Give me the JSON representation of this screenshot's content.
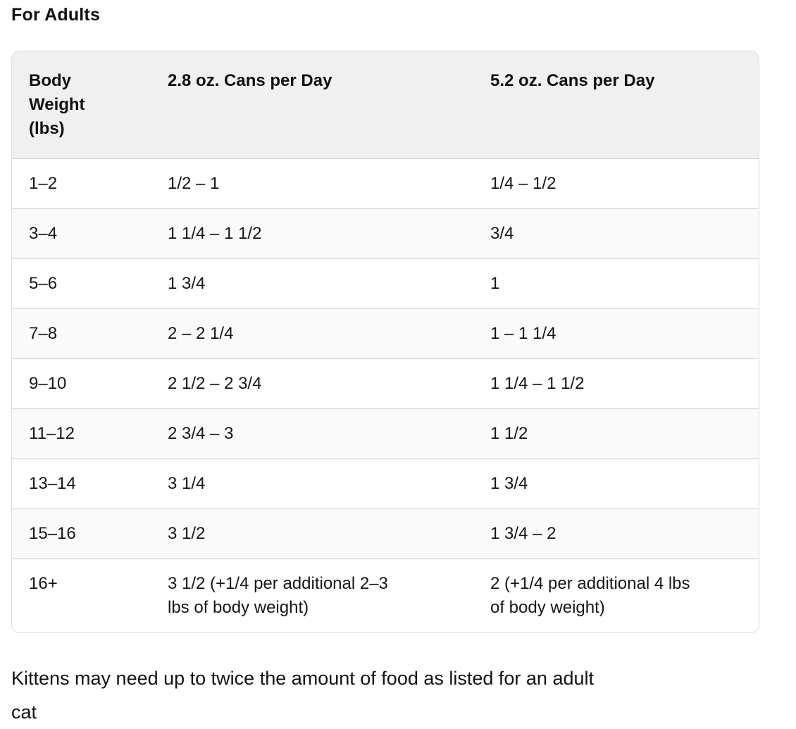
{
  "page": {
    "heading": "For Adults",
    "note": "Kittens may need up to twice the amount of food as listed for an adult\ncat"
  },
  "table": {
    "columns": [
      "Body Weight (lbs)",
      "2.8 oz. Cans per Day",
      "5.2 oz. Cans per Day"
    ],
    "rows": [
      [
        "1–2",
        "1/2 – 1",
        "1/4 – 1/2"
      ],
      [
        "3–4",
        "1 1/4 – 1 1/2",
        "3/4"
      ],
      [
        "5–6",
        "1 3/4",
        "1"
      ],
      [
        "7–8",
        "2 – 2 1/4",
        "1 – 1 1/4"
      ],
      [
        "9–10",
        "2 1/2 – 2 3/4",
        "1 1/4 – 1 1/2"
      ],
      [
        "11–12",
        "2 3/4 – 3",
        "1 1/2"
      ],
      [
        "13–14",
        "3 1/4",
        "1 3/4"
      ],
      [
        "15–16",
        "3 1/2",
        "1 3/4 – 2"
      ],
      [
        "16+",
        "3 1/2 (+1/4 per additional 2–3\nlbs of body weight)",
        "2 (+1/4 per additional 4 lbs\nof body weight)"
      ]
    ],
    "colors": {
      "header_bg": "#f0f0f0",
      "row_alt_bg": "#fafafa",
      "outer_border": "#dcdcdc",
      "row_divider": "#c9c9c9",
      "text": "#161616"
    }
  }
}
